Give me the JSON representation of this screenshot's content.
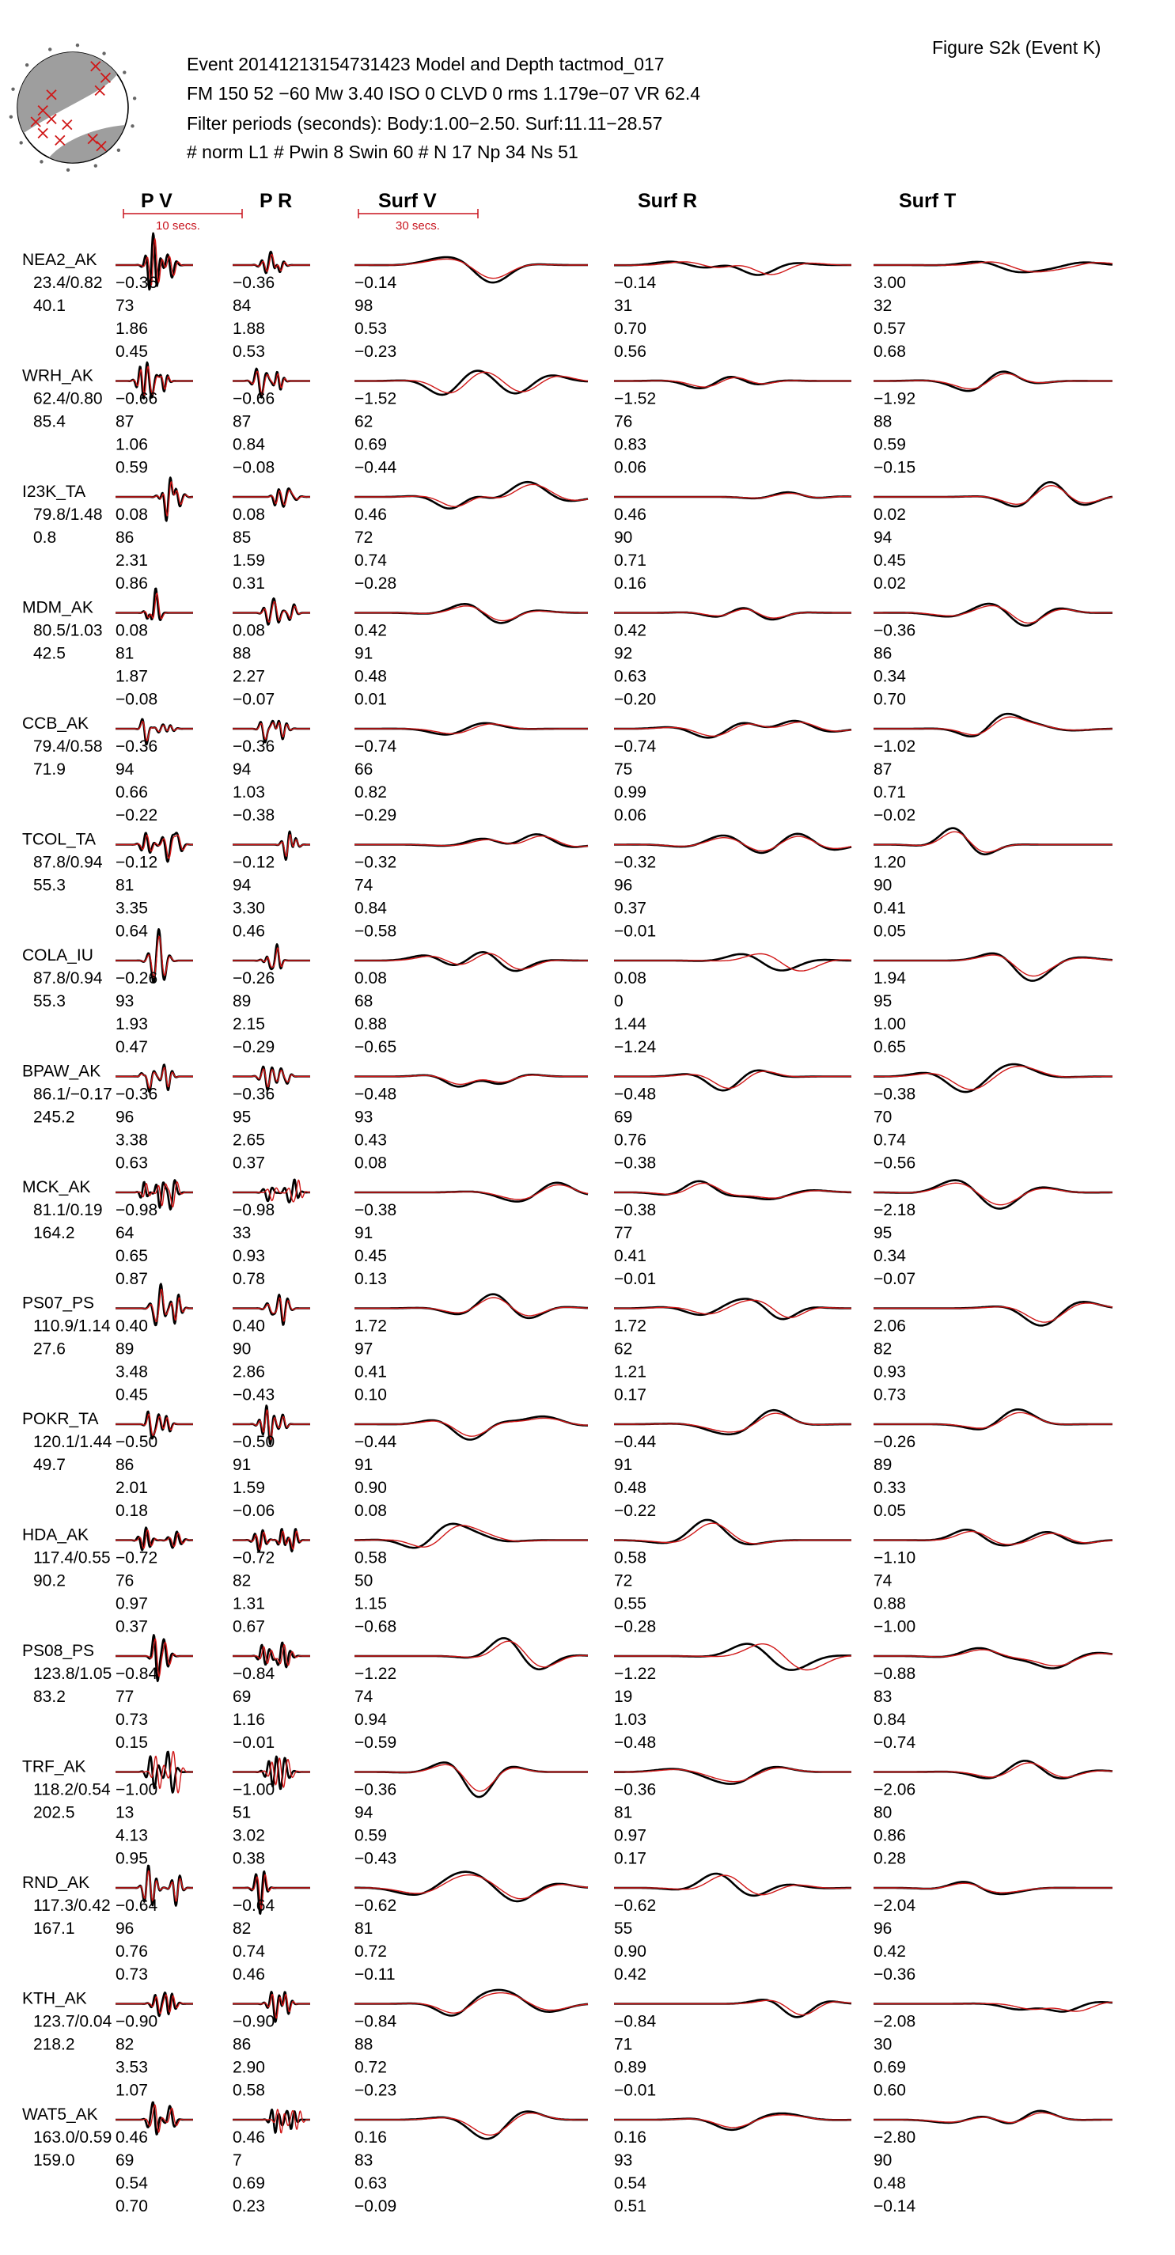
{
  "figure_label": "Figure S2k (Event K)",
  "header_lines": [
    "Event 20141213154731423 Model and Depth tactmod_017",
    "FM 150 52 −60 Mw 3.40 ISO   0 CLVD   0 rms 1.179e−07 VR 62.4",
    "Filter periods (seconds): Body:1.00−2.50. Surf:11.11−28.57",
    "# norm L1    # Pwin 8 Swin 60    # N 17 Np 34 Ns 51"
  ],
  "scale_bars": {
    "body": "10 secs.",
    "surf": "30 secs."
  },
  "colors": {
    "data": "#000000",
    "synthetic": "#d01818",
    "beachball": "#9e9e9e",
    "scale": "#c8141e"
  },
  "chart_data": {
    "type": "line",
    "title": "Event 20141213154731423 Model and Depth tactmod_017",
    "columns": [
      "P V",
      "P R",
      "Surf V",
      "Surf R",
      "Surf T"
    ],
    "series": [
      {
        "name": "data",
        "color": "#000000"
      },
      {
        "name": "synthetic",
        "color": "#d01818"
      }
    ],
    "stations": [
      {
        "name": "NEA2_AK",
        "dist_az": "23.4/0.82",
        "baz": "40.1",
        "stats": [
          [
            "−0.36",
            "73",
            "1.86",
            "0.45"
          ],
          [
            "−0.36",
            "84",
            "1.88",
            "0.53"
          ],
          [
            "−0.14",
            "98",
            "0.53",
            "−0.23"
          ],
          [
            "−0.14",
            "31",
            "0.70",
            "0.56"
          ],
          [
            "3.00",
            "32",
            "0.57",
            "0.68"
          ]
        ]
      },
      {
        "name": "WRH_AK",
        "dist_az": "62.4/0.80",
        "baz": "85.4",
        "stats": [
          [
            "−0.66",
            "87",
            "1.06",
            "0.59"
          ],
          [
            "−0.66",
            "87",
            "0.84",
            "−0.08"
          ],
          [
            "−1.52",
            "62",
            "0.69",
            "−0.44"
          ],
          [
            "−1.52",
            "76",
            "0.83",
            "0.06"
          ],
          [
            "−1.92",
            "88",
            "0.59",
            "−0.15"
          ]
        ]
      },
      {
        "name": "I23K_TA",
        "dist_az": "79.8/1.48",
        "baz": "0.8",
        "stats": [
          [
            "0.08",
            "86",
            "2.31",
            "0.86"
          ],
          [
            "0.08",
            "85",
            "1.59",
            "0.31"
          ],
          [
            "0.46",
            "72",
            "0.74",
            "−0.28"
          ],
          [
            "0.46",
            "90",
            "0.71",
            "0.16"
          ],
          [
            "0.02",
            "94",
            "0.45",
            "0.02"
          ]
        ]
      },
      {
        "name": "MDM_AK",
        "dist_az": "80.5/1.03",
        "baz": "42.5",
        "stats": [
          [
            "0.08",
            "81",
            "1.87",
            "−0.08"
          ],
          [
            "0.08",
            "88",
            "2.27",
            "−0.07"
          ],
          [
            "0.42",
            "91",
            "0.48",
            "0.01"
          ],
          [
            "0.42",
            "92",
            "0.63",
            "−0.20"
          ],
          [
            "−0.36",
            "86",
            "0.34",
            "0.70"
          ]
        ]
      },
      {
        "name": "CCB_AK",
        "dist_az": "79.4/0.58",
        "baz": "71.9",
        "stats": [
          [
            "−0.36",
            "94",
            "0.66",
            "−0.22"
          ],
          [
            "−0.36",
            "94",
            "1.03",
            "−0.38"
          ],
          [
            "−0.74",
            "66",
            "0.82",
            "−0.29"
          ],
          [
            "−0.74",
            "75",
            "0.99",
            "0.06"
          ],
          [
            "−1.02",
            "87",
            "0.71",
            "−0.02"
          ]
        ]
      },
      {
        "name": "TCOL_TA",
        "dist_az": "87.8/0.94",
        "baz": "55.3",
        "stats": [
          [
            "−0.12",
            "81",
            "3.35",
            "0.64"
          ],
          [
            "−0.12",
            "94",
            "3.30",
            "0.46"
          ],
          [
            "−0.32",
            "74",
            "0.84",
            "−0.58"
          ],
          [
            "−0.32",
            "96",
            "0.37",
            "−0.01"
          ],
          [
            "1.20",
            "90",
            "0.41",
            "0.05"
          ]
        ]
      },
      {
        "name": "COLA_IU",
        "dist_az": "87.8/0.94",
        "baz": "55.3",
        "stats": [
          [
            "−0.26",
            "93",
            "1.93",
            "0.47"
          ],
          [
            "−0.26",
            "89",
            "2.15",
            "−0.29"
          ],
          [
            "0.08",
            "68",
            "0.88",
            "−0.65"
          ],
          [
            "0.08",
            "0",
            "1.44",
            "−1.24"
          ],
          [
            "1.94",
            "95",
            "1.00",
            "0.65"
          ]
        ]
      },
      {
        "name": "BPAW_AK",
        "dist_az": "86.1/−0.17",
        "baz": "245.2",
        "stats": [
          [
            "−0.36",
            "96",
            "3.38",
            "0.63"
          ],
          [
            "−0.36",
            "95",
            "2.65",
            "0.37"
          ],
          [
            "−0.48",
            "93",
            "0.43",
            "0.08"
          ],
          [
            "−0.48",
            "69",
            "0.76",
            "−0.38"
          ],
          [
            "−0.38",
            "70",
            "0.74",
            "−0.56"
          ]
        ]
      },
      {
        "name": "MCK_AK",
        "dist_az": "81.1/0.19",
        "baz": "164.2",
        "stats": [
          [
            "−0.98",
            "64",
            "0.65",
            "0.87"
          ],
          [
            "−0.98",
            "33",
            "0.93",
            "0.78"
          ],
          [
            "−0.38",
            "91",
            "0.45",
            "0.13"
          ],
          [
            "−0.38",
            "77",
            "0.41",
            "−0.01"
          ],
          [
            "−2.18",
            "95",
            "0.34",
            "−0.07"
          ]
        ]
      },
      {
        "name": "PS07_PS",
        "dist_az": "110.9/1.14",
        "baz": "27.6",
        "stats": [
          [
            "0.40",
            "89",
            "3.48",
            "0.45"
          ],
          [
            "0.40",
            "90",
            "2.86",
            "−0.43"
          ],
          [
            "1.72",
            "97",
            "0.41",
            "0.10"
          ],
          [
            "1.72",
            "62",
            "1.21",
            "0.17"
          ],
          [
            "2.06",
            "82",
            "0.93",
            "0.73"
          ]
        ]
      },
      {
        "name": "POKR_TA",
        "dist_az": "120.1/1.44",
        "baz": "49.7",
        "stats": [
          [
            "−0.50",
            "86",
            "2.01",
            "0.18"
          ],
          [
            "−0.50",
            "91",
            "1.59",
            "−0.06"
          ],
          [
            "−0.44",
            "91",
            "0.90",
            "0.08"
          ],
          [
            "−0.44",
            "91",
            "0.48",
            "−0.22"
          ],
          [
            "−0.26",
            "89",
            "0.33",
            "0.05"
          ]
        ]
      },
      {
        "name": "HDA_AK",
        "dist_az": "117.4/0.55",
        "baz": "90.2",
        "stats": [
          [
            "−0.72",
            "76",
            "0.97",
            "0.37"
          ],
          [
            "−0.72",
            "82",
            "1.31",
            "0.67"
          ],
          [
            "0.58",
            "50",
            "1.15",
            "−0.68"
          ],
          [
            "0.58",
            "72",
            "0.55",
            "−0.28"
          ],
          [
            "−1.10",
            "74",
            "0.88",
            "−1.00"
          ]
        ]
      },
      {
        "name": "PS08_PS",
        "dist_az": "123.8/1.05",
        "baz": "83.2",
        "stats": [
          [
            "−0.84",
            "77",
            "0.73",
            "0.15"
          ],
          [
            "−0.84",
            "69",
            "1.16",
            "−0.01"
          ],
          [
            "−1.22",
            "74",
            "0.94",
            "−0.59"
          ],
          [
            "−1.22",
            "19",
            "1.03",
            "−0.48"
          ],
          [
            "−0.88",
            "83",
            "0.84",
            "−0.74"
          ]
        ]
      },
      {
        "name": "TRF_AK",
        "dist_az": "118.2/0.54",
        "baz": "202.5",
        "stats": [
          [
            "−1.00",
            "13",
            "4.13",
            "0.95"
          ],
          [
            "−1.00",
            "51",
            "3.02",
            "0.38"
          ],
          [
            "−0.36",
            "94",
            "0.59",
            "−0.43"
          ],
          [
            "−0.36",
            "81",
            "0.97",
            "0.17"
          ],
          [
            "−2.06",
            "80",
            "0.86",
            "0.28"
          ]
        ]
      },
      {
        "name": "RND_AK",
        "dist_az": "117.3/0.42",
        "baz": "167.1",
        "stats": [
          [
            "−0.64",
            "96",
            "0.76",
            "0.73"
          ],
          [
            "−0.64",
            "82",
            "0.74",
            "0.46"
          ],
          [
            "−0.62",
            "81",
            "0.72",
            "−0.11"
          ],
          [
            "−0.62",
            "55",
            "0.90",
            "0.42"
          ],
          [
            "−2.04",
            "96",
            "0.42",
            "−0.36"
          ]
        ]
      },
      {
        "name": "KTH_AK",
        "dist_az": "123.7/0.04",
        "baz": "218.2",
        "stats": [
          [
            "−0.90",
            "82",
            "3.53",
            "1.07"
          ],
          [
            "−0.90",
            "86",
            "2.90",
            "0.58"
          ],
          [
            "−0.84",
            "88",
            "0.72",
            "−0.23"
          ],
          [
            "−0.84",
            "71",
            "0.89",
            "−0.01"
          ],
          [
            "−2.08",
            "30",
            "0.69",
            "0.60"
          ]
        ]
      },
      {
        "name": "WAT5_AK",
        "dist_az": "163.0/0.59",
        "baz": "159.0",
        "stats": [
          [
            "0.46",
            "69",
            "0.54",
            "0.70"
          ],
          [
            "0.46",
            "7",
            "0.69",
            "0.23"
          ],
          [
            "0.16",
            "83",
            "0.63",
            "−0.09"
          ],
          [
            "0.16",
            "93",
            "0.54",
            "0.51"
          ],
          [
            "−2.80",
            "90",
            "0.48",
            "−0.14"
          ]
        ]
      }
    ]
  }
}
